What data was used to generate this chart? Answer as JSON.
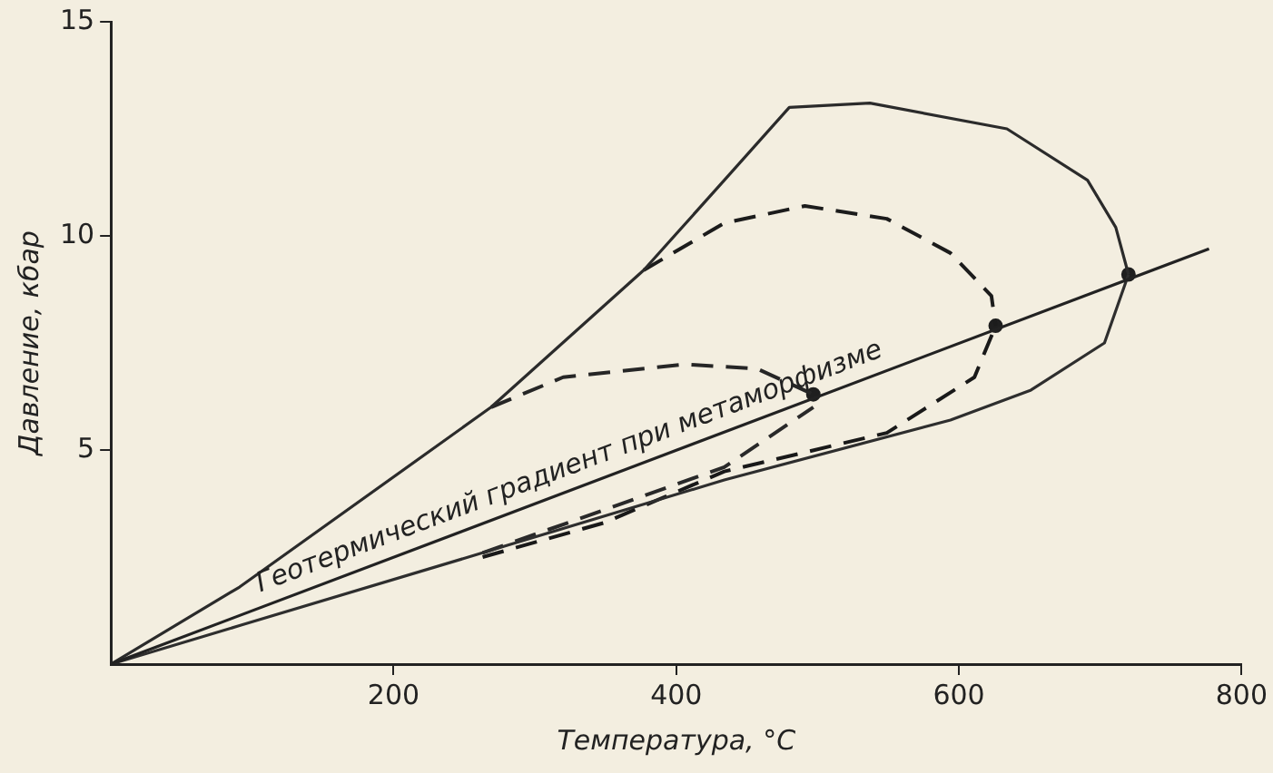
{
  "chart_data": {
    "type": "line",
    "xlabel": "Температура, °С",
    "ylabel": "Давление, кбар",
    "xlim": [
      0,
      800
    ],
    "ylim": [
      0,
      15
    ],
    "xticks": [
      200,
      400,
      600,
      800
    ],
    "yticks": [
      5,
      10,
      15
    ],
    "grid": false,
    "legend": false,
    "series": [
      {
        "color": "#222222",
        "line_style": "solid",
        "x": [
          0,
          777
        ],
        "values": [
          0,
          9.7
        ]
      },
      {
        "color": "#2b2b2b",
        "line_style": "solid",
        "x": [
          0,
          91,
          269,
          377,
          434,
          480,
          537,
          634,
          691,
          711,
          720
        ],
        "values": [
          0,
          1.8,
          6.0,
          9.2,
          11.3,
          13.0,
          13.1,
          12.5,
          11.3,
          10.2,
          9.1
        ]
      },
      {
        "color": "#2e2e2e",
        "line_style": "solid",
        "x": [
          0,
          91,
          263,
          434,
          594,
          651,
          703,
          720
        ],
        "values": [
          0,
          0.9,
          2.6,
          4.3,
          5.7,
          6.4,
          7.5,
          9.1
        ]
      },
      {
        "color": "#1c1c1c",
        "line_style": "dashed",
        "x": [
          377,
          434,
          491,
          549,
          594,
          623,
          626
        ],
        "values": [
          9.2,
          10.3,
          10.7,
          10.4,
          9.6,
          8.6,
          7.9
        ]
      },
      {
        "color": "#191919",
        "line_style": "dashed",
        "x": [
          263,
          349,
          434,
          549,
          611,
          626
        ],
        "values": [
          2.5,
          3.3,
          4.5,
          5.4,
          6.7,
          7.9
        ]
      },
      {
        "color": "#262626",
        "line_style": "dashed",
        "x": [
          269,
          320,
          406,
          457,
          497
        ],
        "values": [
          6.0,
          6.7,
          7.0,
          6.9,
          6.3
        ]
      },
      {
        "color": "#292929",
        "line_style": "dashed",
        "x": [
          263,
          349,
          434,
          497
        ],
        "values": [
          2.6,
          3.6,
          4.6,
          6.0
        ]
      },
      {
        "type": "scatter",
        "marker": "circle",
        "color": "#1f1f1f",
        "x": [
          720,
          626,
          497
        ],
        "values": [
          9.1,
          7.9,
          6.3
        ]
      }
    ],
    "annotations": [
      {
        "text": "Геотермический градиент при метаморфизме",
        "x": 330,
        "y": 4.12
      }
    ]
  }
}
